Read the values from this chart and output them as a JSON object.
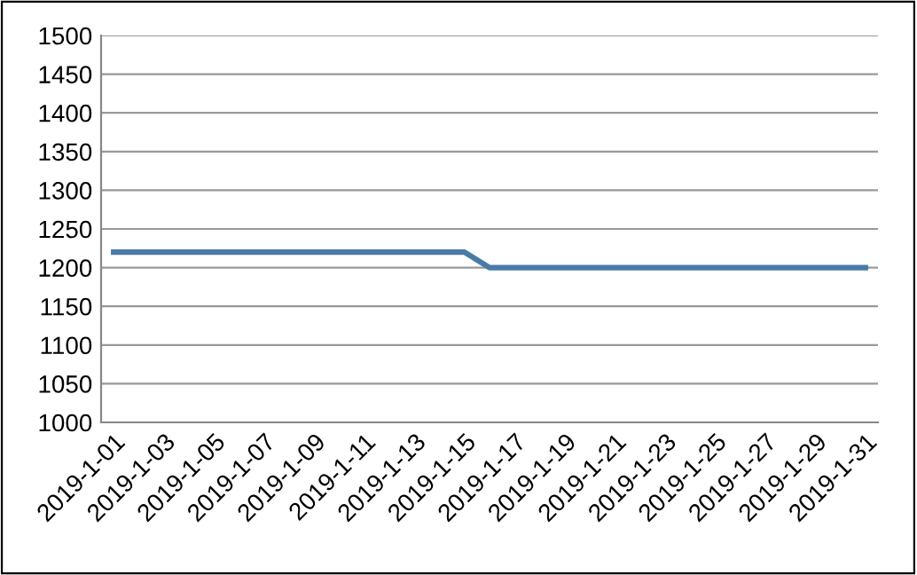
{
  "chart_data": {
    "type": "line",
    "categories": [
      "2019-1-01",
      null,
      "2019-1-03",
      null,
      "2019-1-05",
      null,
      "2019-1-07",
      null,
      "2019-1-09",
      null,
      "2019-1-11",
      null,
      "2019-1-13",
      null,
      "2019-1-15",
      null,
      "2019-1-17",
      null,
      "2019-1-19",
      null,
      "2019-1-21",
      null,
      "2019-1-23",
      null,
      "2019-1-25",
      null,
      "2019-1-27",
      null,
      "2019-1-29",
      null,
      "2019-1-31"
    ],
    "series": [
      {
        "color": "#4a7ba7",
        "values": [
          1220,
          1220,
          1220,
          1220,
          1220,
          1220,
          1220,
          1220,
          1220,
          1220,
          1220,
          1220,
          1220,
          1220,
          1220,
          1200,
          1200,
          1200,
          1200,
          1200,
          1200,
          1200,
          1200,
          1200,
          1200,
          1200,
          1200,
          1200,
          1200,
          1200,
          1200
        ]
      }
    ],
    "ylim": [
      1000,
      1500
    ],
    "yticks": [
      1000,
      1050,
      1100,
      1150,
      1200,
      1250,
      1300,
      1350,
      1400,
      1450,
      1500
    ],
    "grid": "y",
    "legend": false,
    "marker": "none",
    "line_style": "solid"
  }
}
